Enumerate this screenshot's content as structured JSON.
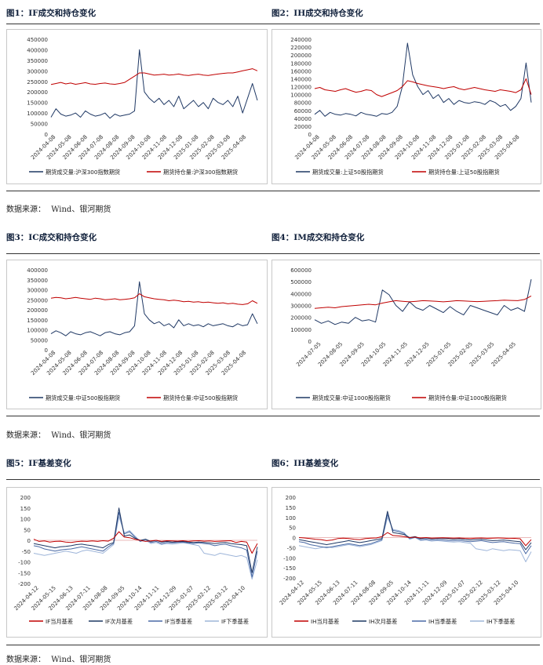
{
  "figures": [
    {
      "title": "图1：IF成交和持仓变化"
    },
    {
      "title": "图2：IH成交和持仓变化"
    },
    {
      "title": "图3：IC成交和持仓变化"
    },
    {
      "title": "图4：IM成交和持仓变化"
    },
    {
      "title": "图5：IF基差变化"
    },
    {
      "title": "图6：IH基差变化"
    }
  ],
  "source": {
    "label": "数据来源：",
    "value": "Wind、银河期货"
  },
  "colors": {
    "dark": "#1f3864",
    "red": "#c00000",
    "mid": "#4a6aa5",
    "light": "#9eb5d9",
    "zero": "#e5a0a0"
  },
  "chart_data": [
    {
      "type": "line",
      "yticks": [
        "0",
        "50000",
        "100000",
        "150000",
        "200000",
        "250000",
        "300000",
        "350000",
        "400000",
        "450000"
      ],
      "ylim": [
        0,
        450000
      ],
      "xticks": [
        "2024-04-08",
        "2024-05-08",
        "2024-06-08",
        "2024-07-08",
        "2024-08-08",
        "2024-09-08",
        "2024-10-08",
        "2024-11-08",
        "2024-12-08",
        "2025-01-08",
        "2025-02-08",
        "2025-03-08",
        "2025-04-08"
      ],
      "series": [
        {
          "name": "期货成交量:沪深300指数期货",
          "color": "dark",
          "values": [
            80000,
            120000,
            95000,
            85000,
            90000,
            100000,
            80000,
            110000,
            95000,
            85000,
            90000,
            100000,
            75000,
            95000,
            85000,
            90000,
            95000,
            110000,
            400000,
            200000,
            170000,
            150000,
            170000,
            140000,
            160000,
            130000,
            180000,
            120000,
            140000,
            160000,
            130000,
            150000,
            120000,
            170000,
            150000,
            140000,
            160000,
            130000,
            180000,
            100000,
            170000,
            240000,
            160000
          ]
        },
        {
          "name": "期货持仓量:沪深300指数期货",
          "color": "red",
          "values": [
            235000,
            240000,
            245000,
            238000,
            242000,
            236000,
            240000,
            244000,
            238000,
            236000,
            240000,
            242000,
            238000,
            236000,
            240000,
            245000,
            260000,
            275000,
            290000,
            290000,
            285000,
            280000,
            282000,
            284000,
            280000,
            282000,
            285000,
            280000,
            278000,
            282000,
            284000,
            280000,
            278000,
            282000,
            285000,
            288000,
            290000,
            290000,
            295000,
            300000,
            305000,
            310000,
            300000
          ]
        }
      ]
    },
    {
      "type": "line",
      "yticks": [
        "0",
        "20000",
        "40000",
        "60000",
        "80000",
        "100000",
        "120000",
        "140000",
        "160000",
        "180000",
        "200000",
        "220000",
        "240000"
      ],
      "ylim": [
        0,
        240000
      ],
      "xticks": [
        "2024-04-08",
        "2024-05-08",
        "2024-06-08",
        "2024-07-08",
        "2024-08-08",
        "2024-09-08",
        "2024-10-08",
        "2024-11-08",
        "2024-12-08",
        "2025-01-08",
        "2025-02-08",
        "2025-03-08",
        "2025-04-08"
      ],
      "series": [
        {
          "name": "期货成交量:上证50股指期货",
          "color": "dark",
          "values": [
            50000,
            60000,
            45000,
            55000,
            50000,
            48000,
            52000,
            50000,
            46000,
            55000,
            50000,
            48000,
            45000,
            52000,
            50000,
            55000,
            70000,
            120000,
            230000,
            150000,
            120000,
            100000,
            110000,
            90000,
            100000,
            80000,
            90000,
            75000,
            85000,
            80000,
            78000,
            82000,
            80000,
            75000,
            85000,
            80000,
            70000,
            75000,
            60000,
            70000,
            90000,
            180000,
            80000
          ]
        },
        {
          "name": "期货持仓量:上证50股指期货",
          "color": "red",
          "values": [
            115000,
            118000,
            112000,
            110000,
            108000,
            112000,
            115000,
            110000,
            106000,
            108000,
            112000,
            110000,
            100000,
            95000,
            100000,
            105000,
            110000,
            120000,
            135000,
            132000,
            128000,
            125000,
            122000,
            120000,
            118000,
            115000,
            118000,
            120000,
            115000,
            112000,
            115000,
            118000,
            115000,
            112000,
            110000,
            108000,
            112000,
            110000,
            108000,
            105000,
            112000,
            140000,
            100000
          ]
        }
      ]
    },
    {
      "type": "line",
      "yticks": [
        "0",
        "50000",
        "100000",
        "150000",
        "200000",
        "250000",
        "300000",
        "350000",
        "400000"
      ],
      "ylim": [
        0,
        400000
      ],
      "xticks": [
        "2024-04-08",
        "2024-05-08",
        "2024-06-08",
        "2024-07-08",
        "2024-08-08",
        "2024-09-08",
        "2024-10-08",
        "2024-11-08",
        "2024-12-08",
        "2025-01-08",
        "2025-02-08",
        "2025-03-08",
        "2025-04-08"
      ],
      "series": [
        {
          "name": "期货成交量:中证500股指期货",
          "color": "dark",
          "values": [
            80000,
            95000,
            85000,
            70000,
            90000,
            80000,
            75000,
            85000,
            90000,
            80000,
            70000,
            85000,
            90000,
            80000,
            75000,
            85000,
            90000,
            120000,
            340000,
            180000,
            150000,
            130000,
            140000,
            120000,
            130000,
            110000,
            150000,
            120000,
            130000,
            120000,
            125000,
            115000,
            130000,
            120000,
            125000,
            130000,
            120000,
            115000,
            130000,
            120000,
            125000,
            180000,
            130000
          ]
        },
        {
          "name": "期货持仓量:中证500股指期货",
          "color": "red",
          "values": [
            258000,
            262000,
            260000,
            255000,
            258000,
            262000,
            258000,
            255000,
            252000,
            258000,
            255000,
            250000,
            252000,
            255000,
            250000,
            252000,
            255000,
            260000,
            280000,
            265000,
            260000,
            255000,
            252000,
            250000,
            245000,
            248000,
            245000,
            240000,
            242000,
            238000,
            240000,
            236000,
            238000,
            235000,
            232000,
            235000,
            230000,
            232000,
            228000,
            226000,
            230000,
            245000,
            232000
          ]
        }
      ]
    },
    {
      "type": "line",
      "yticks": [
        "0",
        "100000",
        "200000",
        "300000",
        "400000",
        "500000",
        "600000"
      ],
      "ylim": [
        0,
        600000
      ],
      "xticks": [
        "2024-07-05",
        "2024-08-05",
        "2024-09-05",
        "2024-10-05",
        "2024-11-05",
        "2024-12-05",
        "2025-01-05",
        "2025-02-05",
        "2025-03-05",
        "2025-04-05"
      ],
      "series": [
        {
          "name": "期货成交量:中证1000股指期货",
          "color": "dark",
          "values": [
            180000,
            150000,
            170000,
            140000,
            160000,
            150000,
            200000,
            170000,
            180000,
            160000,
            430000,
            390000,
            300000,
            250000,
            330000,
            280000,
            260000,
            300000,
            270000,
            240000,
            290000,
            250000,
            220000,
            300000,
            280000,
            260000,
            240000,
            220000,
            300000,
            260000,
            280000,
            250000,
            520000
          ]
        },
        {
          "name": "期货持仓量:中证1000股指期货",
          "color": "red",
          "values": [
            275000,
            280000,
            285000,
            280000,
            290000,
            295000,
            300000,
            305000,
            310000,
            305000,
            320000,
            330000,
            340000,
            335000,
            330000,
            335000,
            340000,
            338000,
            335000,
            330000,
            335000,
            340000,
            338000,
            335000,
            332000,
            335000,
            338000,
            340000,
            345000,
            342000,
            340000,
            350000,
            380000
          ]
        }
      ]
    },
    {
      "type": "line",
      "yticks": [
        "200",
        "150",
        "100",
        "50",
        "0",
        "-50",
        "-100",
        "-150",
        "-200"
      ],
      "ylim": [
        -200,
        200
      ],
      "xticks": [
        "2024-04-12",
        "2024-05-15",
        "2024-06-13",
        "2024-07-11",
        "2024-08-08",
        "2024-09-05",
        "2024-10-14",
        "2024-11-11",
        "2024-12-09",
        "2025-01-07",
        "2025-02-12",
        "2025-03-12",
        "2025-04-10"
      ],
      "series": [
        {
          "name": "IF当月基差",
          "color": "red",
          "values": [
            5,
            -5,
            -3,
            -8,
            -5,
            -4,
            -8,
            -10,
            -6,
            -4,
            -5,
            -3,
            -5,
            -2,
            -4,
            10,
            40,
            15,
            12,
            5,
            0,
            -5,
            -3,
            0,
            -5,
            -2,
            -3,
            -4,
            -2,
            -5,
            -3,
            -2,
            -4,
            -3,
            -5,
            -4,
            -3,
            -2,
            -10,
            -5,
            -8,
            -60,
            -15
          ]
        },
        {
          "name": "IF次月基差",
          "color": "dark",
          "values": [
            -15,
            -20,
            -25,
            -30,
            -35,
            -30,
            -28,
            -25,
            -20,
            -18,
            -22,
            -25,
            -30,
            -35,
            -20,
            -10,
            150,
            20,
            25,
            10,
            0,
            5,
            -5,
            0,
            -8,
            -5,
            -8,
            -6,
            -5,
            -8,
            -10,
            -8,
            -10,
            -12,
            -15,
            -12,
            -10,
            -15,
            -18,
            -20,
            -25,
            -150,
            -30
          ]
        },
        {
          "name": "IF当季基差",
          "color": "mid",
          "values": [
            -25,
            -30,
            -40,
            -45,
            -50,
            -45,
            -42,
            -40,
            -35,
            -30,
            -35,
            -40,
            -45,
            -50,
            -30,
            -15,
            130,
            30,
            40,
            15,
            -5,
            5,
            -10,
            -5,
            -15,
            -10,
            -12,
            -10,
            -8,
            -12,
            -15,
            -12,
            -15,
            -18,
            -25,
            -20,
            -18,
            -25,
            -30,
            -35,
            -45,
            -170,
            -50
          ]
        },
        {
          "name": "IF下季基差",
          "color": "light",
          "values": [
            -60,
            -65,
            -70,
            -65,
            -60,
            -55,
            -50,
            -55,
            -60,
            -50,
            -45,
            -50,
            -55,
            -60,
            -40,
            -20,
            110,
            35,
            45,
            20,
            -5,
            0,
            -15,
            -10,
            -20,
            -15,
            -18,
            -15,
            -12,
            -15,
            -20,
            -25,
            -60,
            -65,
            -70,
            -60,
            -65,
            -70,
            -75,
            -70,
            -80,
            -180,
            -90
          ]
        }
      ]
    },
    {
      "type": "line",
      "yticks": [
        "200",
        "150",
        "100",
        "50",
        "0",
        "-50",
        "-100",
        "-150",
        "-200"
      ],
      "ylim": [
        -200,
        200
      ],
      "xticks": [
        "2024-04-12",
        "2024-05-15",
        "2024-06-13",
        "2024-07-11",
        "2024-08-08",
        "2024-09-05",
        "2024-10-14",
        "2024-11-11",
        "2024-12-09",
        "2025-01-07",
        "2025-02-12",
        "2025-03-12",
        "2025-04-10"
      ],
      "series": [
        {
          "name": "IH当月基差",
          "color": "red",
          "values": [
            0,
            -2,
            -5,
            -8,
            -10,
            -15,
            -12,
            -5,
            -3,
            -5,
            -8,
            -10,
            -5,
            -3,
            -2,
            5,
            25,
            10,
            8,
            5,
            0,
            2,
            -2,
            0,
            -3,
            -2,
            -1,
            -2,
            -3,
            -2,
            -4,
            -5,
            -3,
            -2,
            -4,
            -3,
            -2,
            -3,
            -5,
            -4,
            -6,
            -40,
            -10
          ]
        },
        {
          "name": "IH次月基差",
          "color": "dark",
          "values": [
            -10,
            -15,
            -20,
            -25,
            -30,
            -35,
            -30,
            -25,
            -20,
            -15,
            -20,
            -25,
            -20,
            -15,
            -10,
            -5,
            130,
            25,
            20,
            15,
            0,
            5,
            -5,
            -2,
            -6,
            -4,
            -5,
            -6,
            -8,
            -6,
            -10,
            -12,
            -10,
            -8,
            -12,
            -15,
            -14,
            -12,
            -15,
            -18,
            -20,
            -60,
            -25
          ]
        },
        {
          "name": "IH当季基差",
          "color": "mid",
          "values": [
            -20,
            -25,
            -35,
            -40,
            -45,
            -50,
            -45,
            -40,
            -35,
            -30,
            -35,
            -40,
            -35,
            -30,
            -20,
            -10,
            115,
            35,
            30,
            20,
            -5,
            2,
            -10,
            -8,
            -12,
            -10,
            -12,
            -15,
            -16,
            -14,
            -18,
            -20,
            -18,
            -15,
            -20,
            -25,
            -22,
            -20,
            -25,
            -28,
            -30,
            -80,
            -40
          ]
        },
        {
          "name": "IH下季基差",
          "color": "light",
          "values": [
            -40,
            -45,
            -50,
            -55,
            -50,
            -45,
            -50,
            -45,
            -40,
            -35,
            -40,
            -45,
            -40,
            -35,
            -25,
            -15,
            100,
            40,
            35,
            25,
            -8,
            0,
            -15,
            -12,
            -18,
            -15,
            -18,
            -20,
            -22,
            -20,
            -25,
            -28,
            -55,
            -60,
            -65,
            -55,
            -60,
            -65,
            -60,
            -62,
            -65,
            -120,
            -70
          ]
        }
      ]
    }
  ]
}
